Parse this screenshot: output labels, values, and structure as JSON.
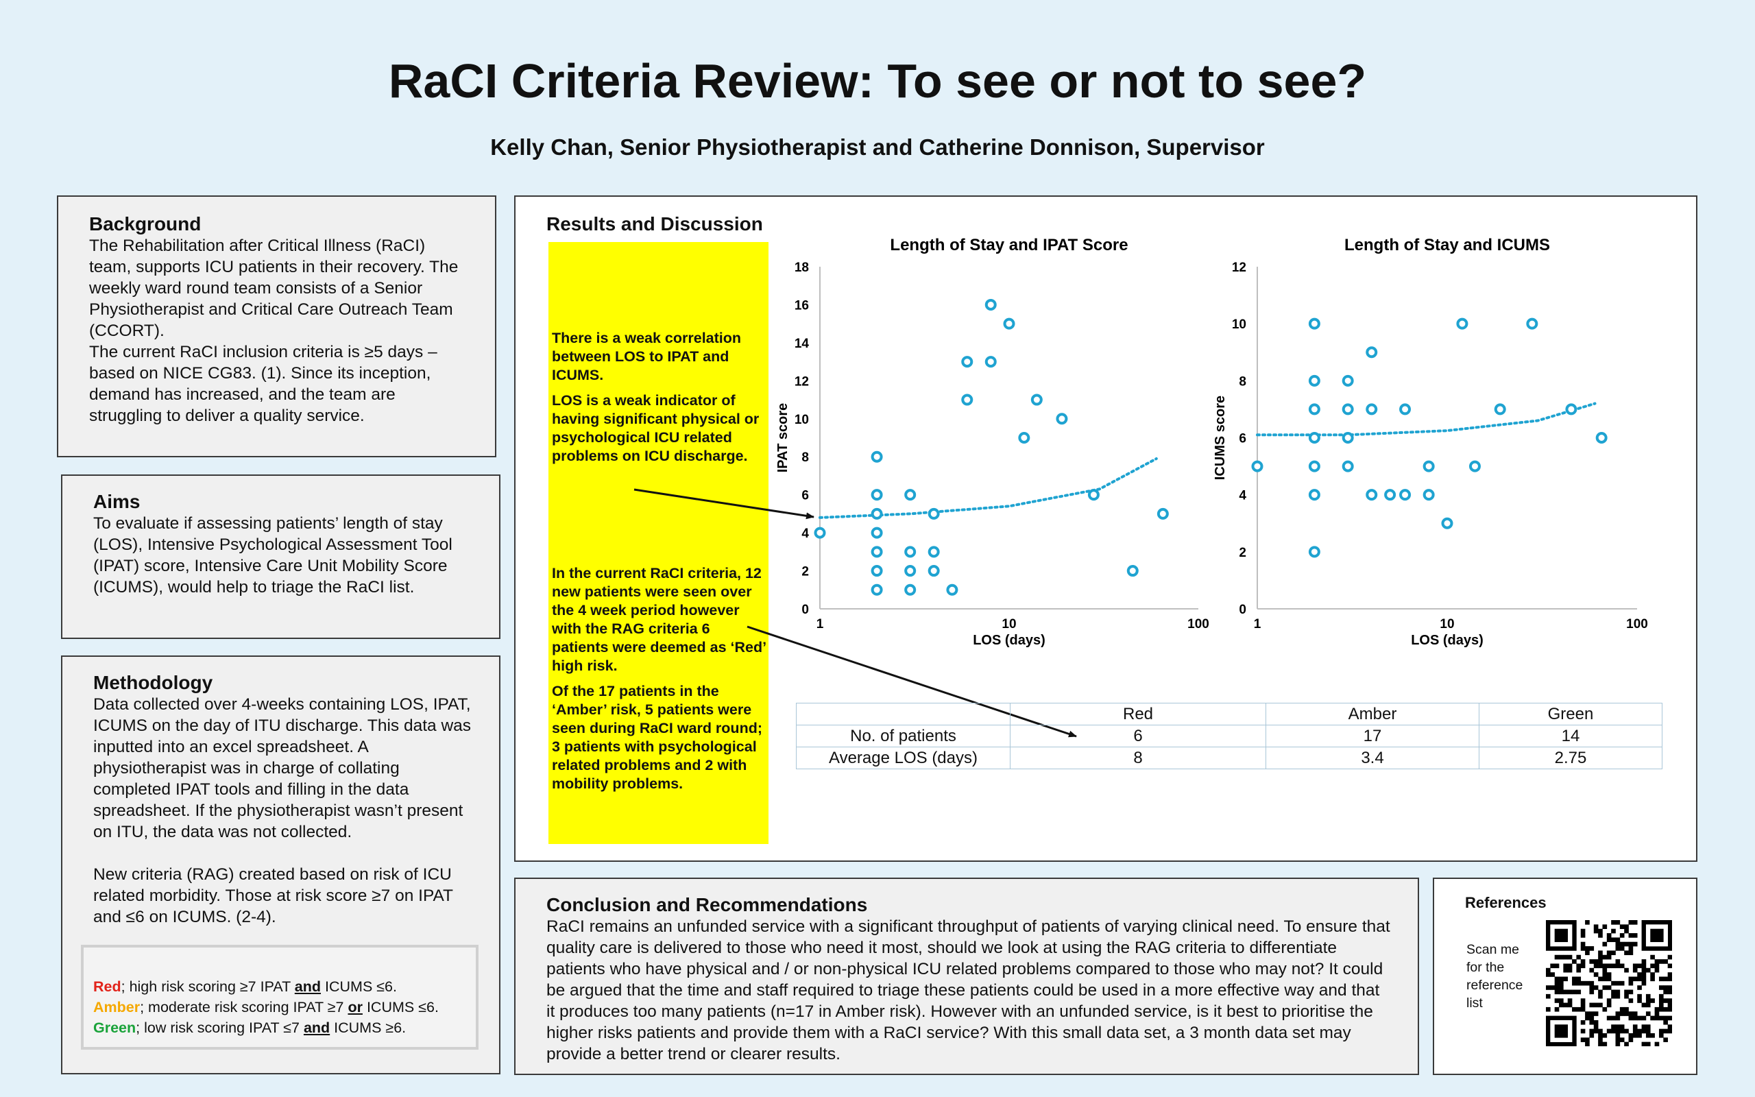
{
  "title": "RaCI Criteria Review: To see or not to see?",
  "authors": "Kelly Chan, Senior Physiotherapist and Catherine Donnison, Supervisor",
  "background": {
    "heading": "Background",
    "p1": "The Rehabilitation after Critical Illness (RaCI) team, supports ICU patients in their recovery. The weekly ward round team consists of a Senior Physiotherapist and Critical Care Outreach Team (CCORT).",
    "p2": "The current RaCI inclusion criteria is ≥5 days – based on NICE CG83. (1). Since its inception, demand has increased, and the team are struggling to deliver a quality service."
  },
  "aims": {
    "heading": "Aims",
    "p1": "To evaluate if assessing patients’ length of stay (LOS), Intensive Psychological Assessment Tool (IPAT) score, Intensive Care Unit Mobility Score (ICUMS), would help to triage the RaCI list."
  },
  "methodology": {
    "heading": "Methodology",
    "p1": "Data collected over 4-weeks containing LOS, IPAT, ICUMS on the day of ITU discharge. This data was inputted into an excel spreadsheet. A physiotherapist was in charge of collating completed IPAT tools and filling in the data spreadsheet. If the physiotherapist wasn’t present on ITU, the data was not collected.",
    "p2": "New criteria (RAG) created based on risk of ICU related morbidity. Those at risk score ≥7 on IPAT and ≤6 on ICUMS. (2-4).",
    "rag": {
      "red_label": "Red",
      "red_text_a": "; high risk scoring ≥7 IPAT ",
      "red_and": "and",
      "red_text_b": " ICUMS ≤6.",
      "amber_label": "Amber",
      "amber_text_a": "; moderate risk scoring IPAT ≥7 ",
      "amber_or": "or",
      "amber_text_b": " ICUMS ≤6.",
      "green_label": "Green",
      "green_text_a": "; low risk scoring IPAT ≤7 ",
      "green_and": "and",
      "green_text_b": " ICUMS ≥6.",
      "colors": {
        "red": "#e2231a",
        "amber": "#f5a800",
        "green": "#1aa33a"
      }
    }
  },
  "results": {
    "heading": "Results and Discussion",
    "y1": "There is a weak correlation between LOS to IPAT and ICUMS.",
    "y2": "LOS is a weak indicator of having significant physical or psychological ICU related problems on ICU discharge.",
    "y3": "In the current RaCI criteria, 12 new patients were seen over the 4 week period however with the RAG criteria 6 patients were deemed as ‘Red’ high risk.",
    "y4": "Of the 17 patients in the ‘Amber’ risk, 5 patients were seen during RaCI ward round; 3 patients with psychological related problems and 2 with mobility problems.",
    "table": {
      "headers": [
        "",
        "Red",
        "Amber",
        "Green"
      ],
      "rows": [
        [
          "No. of patients",
          "6",
          "17",
          "14"
        ],
        [
          "Average LOS (days)",
          "8",
          "3.4",
          "2.75"
        ]
      ]
    }
  },
  "chart_data": [
    {
      "type": "scatter",
      "title": "Length of Stay and IPAT Score",
      "xlabel": "LOS (days)",
      "ylabel": "IPAT score",
      "xscale": "log",
      "xlim": [
        1,
        100
      ],
      "ylim": [
        0,
        18
      ],
      "xticks": [
        "1",
        "10",
        "100"
      ],
      "yticks": [
        "0",
        "2",
        "4",
        "6",
        "8",
        "10",
        "12",
        "14",
        "16",
        "18"
      ],
      "trendline": "dotted",
      "color": "#1fa3d1",
      "points": [
        [
          1,
          4
        ],
        [
          2,
          8
        ],
        [
          2,
          6
        ],
        [
          2,
          5
        ],
        [
          2,
          4
        ],
        [
          2,
          3
        ],
        [
          2,
          2
        ],
        [
          2,
          1
        ],
        [
          3,
          6
        ],
        [
          3,
          3
        ],
        [
          3,
          2
        ],
        [
          3,
          1
        ],
        [
          4,
          5
        ],
        [
          4,
          3
        ],
        [
          4,
          2
        ],
        [
          5,
          1
        ],
        [
          6,
          13
        ],
        [
          6,
          11
        ],
        [
          8,
          16
        ],
        [
          8,
          13
        ],
        [
          10,
          15
        ],
        [
          12,
          9
        ],
        [
          14,
          11
        ],
        [
          19,
          10
        ],
        [
          28,
          6
        ],
        [
          45,
          2
        ],
        [
          65,
          5
        ]
      ],
      "trend": [
        [
          1,
          4.8
        ],
        [
          3,
          5.0
        ],
        [
          10,
          5.4
        ],
        [
          30,
          6.3
        ],
        [
          60,
          7.9
        ]
      ]
    },
    {
      "type": "scatter",
      "title": "Length of Stay and ICUMS",
      "xlabel": "LOS (days)",
      "ylabel": "ICUMS score",
      "xscale": "log",
      "xlim": [
        1,
        100
      ],
      "ylim": [
        0,
        12
      ],
      "xticks": [
        "1",
        "10",
        "100"
      ],
      "yticks": [
        "0",
        "2",
        "4",
        "6",
        "8",
        "10",
        "12"
      ],
      "trendline": "dotted",
      "color": "#1fa3d1",
      "points": [
        [
          1,
          5
        ],
        [
          2,
          10
        ],
        [
          2,
          8
        ],
        [
          2,
          7
        ],
        [
          2,
          6
        ],
        [
          2,
          5
        ],
        [
          2,
          4
        ],
        [
          2,
          2
        ],
        [
          3,
          8
        ],
        [
          3,
          7
        ],
        [
          3,
          6
        ],
        [
          3,
          5
        ],
        [
          4,
          9
        ],
        [
          4,
          7
        ],
        [
          4,
          4
        ],
        [
          5,
          4
        ],
        [
          6,
          7
        ],
        [
          6,
          4
        ],
        [
          8,
          5
        ],
        [
          8,
          4
        ],
        [
          10,
          3
        ],
        [
          12,
          10
        ],
        [
          14,
          5
        ],
        [
          19,
          7
        ],
        [
          28,
          10
        ],
        [
          45,
          7
        ],
        [
          65,
          6
        ]
      ],
      "trend": [
        [
          1,
          6.1
        ],
        [
          3,
          6.1
        ],
        [
          10,
          6.25
        ],
        [
          30,
          6.6
        ],
        [
          60,
          7.2
        ]
      ]
    }
  ],
  "conclusion": {
    "heading": "Conclusion and Recommendations",
    "p1": "RaCI remains an unfunded service with a significant throughput of patients of varying clinical need. To ensure that quality care is delivered to those who need it most, should we look at using the RAG criteria to differentiate patients who have physical and / or non-physical ICU related problems compared to those who may not? It could be argued that the time and staff required to triage these patients could be used in a more effective way and that it produces too many patients (n=17 in Amber risk). However with an unfunded service, is it best to prioritise the higher risks patients and provide them with a RaCI service? With this small data set, a 3 month data set may provide a better trend or clearer results."
  },
  "references": {
    "heading": "References",
    "scan_text": "Scan me for the reference list"
  }
}
